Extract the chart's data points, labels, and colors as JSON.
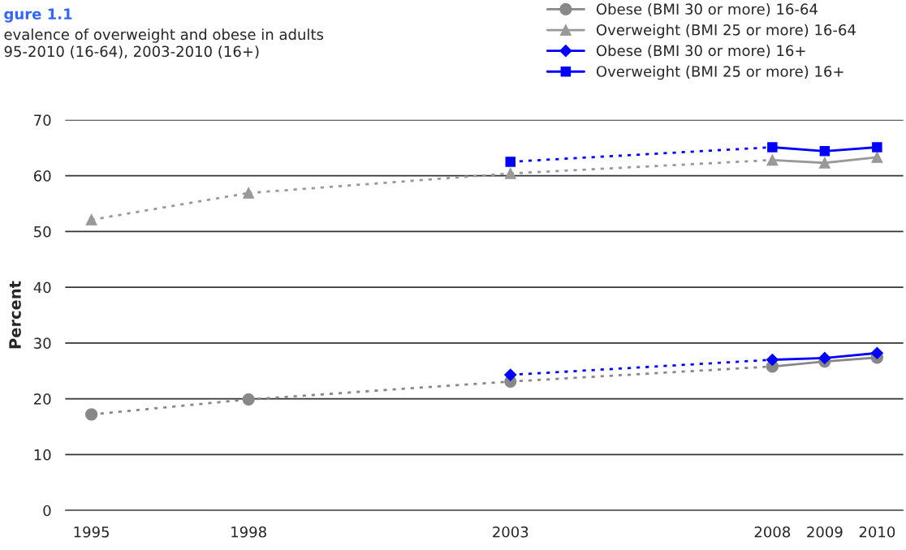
{
  "chart_data": {
    "type": "line",
    "title": "gure 1.1",
    "subtitle": "evalence of overweight and obese in adults\n95-2010 (16-64), 2003-2010 (16+)",
    "ylabel": "Percent",
    "categories": [
      "1995",
      null,
      null,
      "1998",
      null,
      null,
      null,
      null,
      "2003",
      null,
      null,
      null,
      null,
      "2008",
      "2009",
      "2010"
    ],
    "series": [
      {
        "name": "Obese (BMI 30 or more) 16-64",
        "color": "#888888",
        "marker": "circle",
        "values": [
          17.2,
          null,
          null,
          19.9,
          null,
          null,
          null,
          null,
          23.1,
          null,
          null,
          null,
          null,
          25.8,
          26.7,
          27.4
        ]
      },
      {
        "name": "Overweight (BMI 25 or more) 16-64",
        "color": "#999999",
        "marker": "triangle",
        "values": [
          52.1,
          null,
          null,
          56.9,
          null,
          null,
          null,
          null,
          60.4,
          null,
          null,
          null,
          null,
          62.8,
          62.3,
          63.3
        ]
      },
      {
        "name": "Obese (BMI 30 or more) 16+",
        "color": "#0000ff",
        "marker": "diamond",
        "values": [
          null,
          null,
          null,
          null,
          null,
          null,
          null,
          null,
          24.3,
          null,
          null,
          null,
          null,
          27.0,
          27.3,
          28.2
        ]
      },
      {
        "name": "Overweight (BMI 25 or more) 16+",
        "color": "#0000ff",
        "marker": "square",
        "values": [
          null,
          null,
          null,
          null,
          null,
          null,
          null,
          null,
          62.5,
          null,
          null,
          null,
          null,
          65.1,
          64.4,
          65.1
        ]
      }
    ],
    "ylim": [
      0,
      70
    ],
    "yticks": [
      0,
      10,
      20,
      30,
      40,
      50,
      60,
      70
    ],
    "grid": "y",
    "legend": "top right"
  }
}
